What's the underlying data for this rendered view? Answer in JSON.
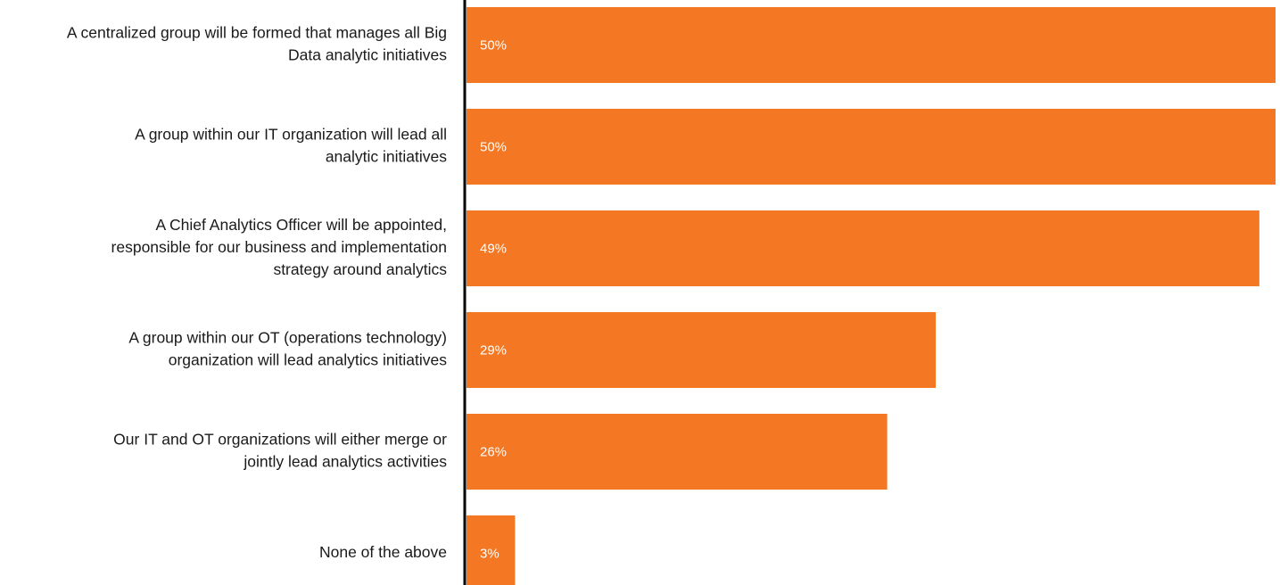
{
  "chart_data": {
    "type": "barh",
    "categories": [
      [
        "A centralized group will be formed that manages all Big",
        "Data analytic initiatives"
      ],
      [
        "A group within our IT organization will lead all",
        "analytic initiatives"
      ],
      [
        "A Chief Analytics Officer will be appointed,",
        "responsible for our business and implementation",
        "strategy around analytics"
      ],
      [
        "A group within our OT (operations technology)",
        "organization will lead analytics initiatives"
      ],
      [
        "Our IT and OT organizations will either merge or",
        "jointly lead analytics activities"
      ],
      [
        "None of the above"
      ]
    ],
    "values": [
      50,
      50,
      49,
      29,
      26,
      3
    ],
    "value_labels": [
      "50%",
      "50%",
      "49%",
      "29%",
      "26%",
      "3%"
    ],
    "color": "#f47723",
    "xlim": [
      0,
      50
    ]
  }
}
